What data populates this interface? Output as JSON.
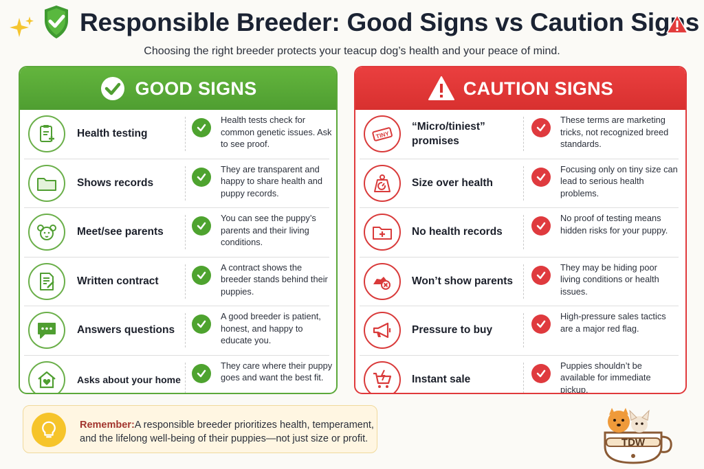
{
  "header": {
    "title": "Responsible Breeder: Good Signs vs Caution Signs",
    "subtitle": "Choosing the right breeder protects your teacup dog’s health and your peace of mind."
  },
  "good": {
    "heading": "GOOD SIGNS",
    "accent_color": "#52a534",
    "rows": [
      {
        "label": "Health testing",
        "desc": "Health tests check for common genetic issues. Ask to see proof.",
        "icon": "clipboard-health-icon"
      },
      {
        "label": "Shows records",
        "desc": "They are transparent and happy to share health and puppy records.",
        "icon": "folder-icon"
      },
      {
        "label": "Meet/see parents",
        "desc": "You can see the puppy’s parents and their living conditions.",
        "icon": "dog-face-icon"
      },
      {
        "label": "Written contract",
        "desc": "A contract shows the breeder stands behind their puppies.",
        "icon": "contract-icon"
      },
      {
        "label": "Answers questions",
        "desc": "A good breeder is patient, honest, and happy to educate you.",
        "icon": "chat-bubble-icon"
      },
      {
        "label": "Asks about your home",
        "desc": "They care where their puppy goes and want the best fit.",
        "icon": "home-heart-icon"
      }
    ]
  },
  "caution": {
    "heading": "CAUTION SIGNS",
    "accent_color": "#dc3535",
    "tiny_tag": "TINY",
    "rows": [
      {
        "label": "“Micro/tiniest” promises",
        "desc": "These terms are marketing tricks, not recognized breed standards.",
        "icon": "tiny-tag-icon"
      },
      {
        "label": "Size over health",
        "desc": "Focusing only on tiny size can lead to serious health problems.",
        "icon": "weight-scale-icon"
      },
      {
        "label": "No health records",
        "desc": "No proof of testing means hidden risks for your puppy.",
        "icon": "folder-plus-icon"
      },
      {
        "label": "Won’t show parents",
        "desc": "They may be hiding poor living conditions or health issues.",
        "icon": "hidden-dog-icon"
      },
      {
        "label": "Pressure to buy",
        "desc": "High-pressure sales tactics are a major red flag.",
        "icon": "megaphone-icon"
      },
      {
        "label": "Instant sale",
        "desc": "Puppies shouldn’t be available for immediate pickup.",
        "icon": "shopping-cart-icon"
      }
    ]
  },
  "remember": {
    "lead": "Remember:",
    "text": "A responsible breeder prioritizes health, temperament, and the lifelong well-being of their puppies—not just size or profit."
  },
  "logo": {
    "text": "TDW"
  }
}
